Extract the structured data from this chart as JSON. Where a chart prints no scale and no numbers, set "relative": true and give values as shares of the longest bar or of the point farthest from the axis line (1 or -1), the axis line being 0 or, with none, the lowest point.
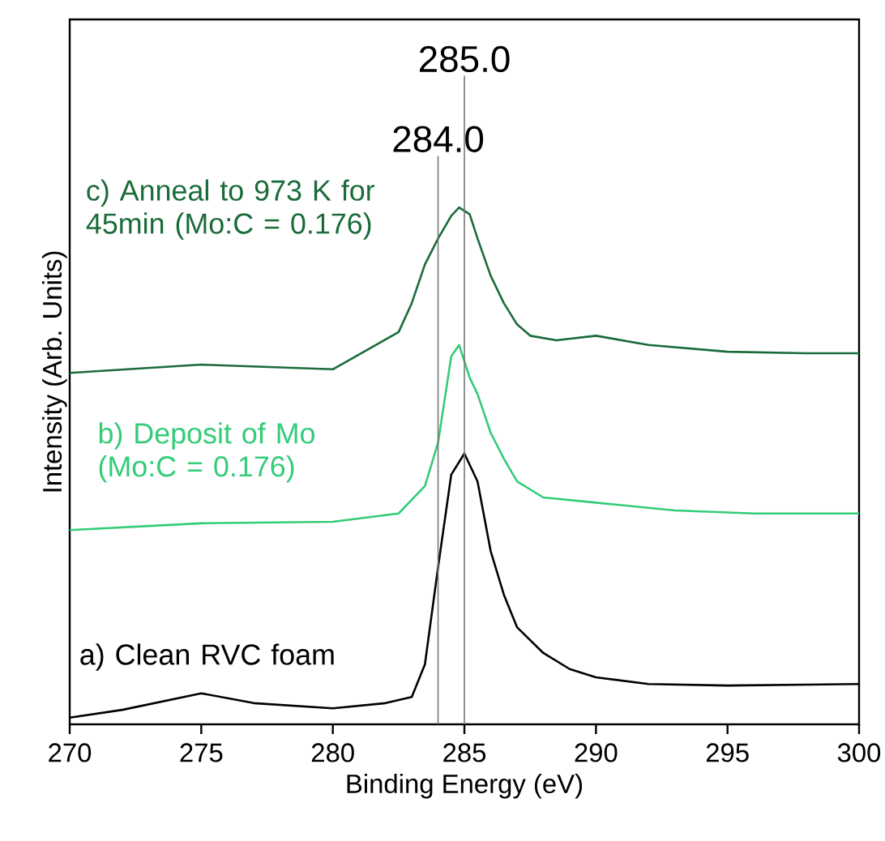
{
  "chart_data": {
    "type": "line",
    "relative": true,
    "xlabel": "Binding Energy (eV)",
    "ylabel": "Intensity (Arb. Units)",
    "xlim": [
      270,
      300
    ],
    "xticks": [
      270,
      275,
      280,
      285,
      290,
      295,
      300
    ],
    "legend": false,
    "marker": "none",
    "line_style": "solid",
    "series": [
      {
        "name": "a) Clean RVC foam",
        "color": "#000000",
        "x": [
          270,
          272,
          275,
          277,
          280,
          282,
          283,
          283.5,
          284,
          284.5,
          285,
          285.5,
          286,
          286.5,
          287,
          288,
          289,
          290,
          292,
          295,
          300
        ],
        "values": [
          0.013,
          0.028,
          0.06,
          0.041,
          0.031,
          0.041,
          0.053,
          0.116,
          0.304,
          0.483,
          0.524,
          0.47,
          0.335,
          0.251,
          0.188,
          0.138,
          0.107,
          0.091,
          0.078,
          0.075,
          0.078
        ]
      },
      {
        "name": "b) Deposit of Mo (Mo:C = 0.176)",
        "color": "#33cc77",
        "x": [
          270,
          275,
          280,
          282.5,
          283.5,
          284,
          284.5,
          284.8,
          285.2,
          285.5,
          286,
          286.5,
          287,
          288,
          290,
          293,
          296,
          300
        ],
        "values": [
          0.376,
          0.389,
          0.392,
          0.408,
          0.461,
          0.545,
          0.712,
          0.734,
          0.671,
          0.639,
          0.564,
          0.514,
          0.47,
          0.439,
          0.429,
          0.414,
          0.408,
          0.408
        ]
      },
      {
        "name": "c) Anneal to 973 K for 45min (Mo:C = 0.176)",
        "color": "#1a6b3a",
        "x": [
          270,
          275,
          280,
          282.5,
          283,
          283.5,
          284,
          284.5,
          284.8,
          285.2,
          285.5,
          286,
          286.5,
          287,
          287.5,
          288.5,
          290,
          292,
          295,
          298,
          300
        ],
        "values": [
          0.68,
          0.696,
          0.687,
          0.759,
          0.815,
          0.89,
          0.94,
          0.984,
          1.0,
          0.987,
          0.94,
          0.868,
          0.815,
          0.774,
          0.752,
          0.743,
          0.752,
          0.734,
          0.721,
          0.718,
          0.718
        ]
      }
    ],
    "ref_lines": [
      {
        "axis": "x",
        "value": 284.0,
        "label": "284.0",
        "color": "#777777"
      },
      {
        "axis": "x",
        "value": 285.0,
        "label": "285.0",
        "color": "#777777"
      }
    ]
  }
}
